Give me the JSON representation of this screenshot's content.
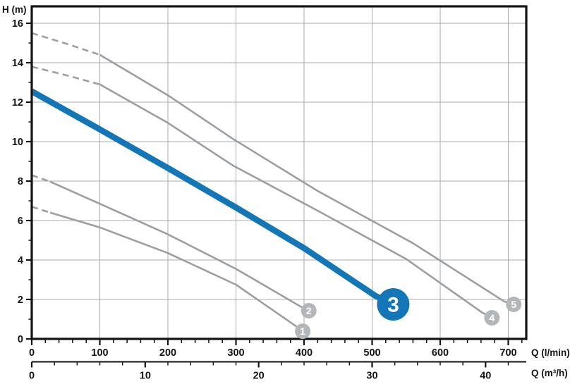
{
  "chart_data": {
    "type": "line",
    "ylabel": "H (m)",
    "xlabel_primary": "Q (l/min)",
    "xlabel_secondary": "Q (m³/h)",
    "y_axis": {
      "range": [
        0,
        16.8
      ],
      "ticks": [
        0,
        2,
        4,
        6,
        8,
        10,
        12,
        14,
        16
      ],
      "minor_step": 1
    },
    "x_axis_lmin": {
      "range": [
        0,
        726
      ],
      "ticks": [
        0,
        100,
        200,
        300,
        400,
        500,
        600,
        700
      ],
      "minor_step": 20
    },
    "x_axis_m3h": {
      "range": [
        0,
        43.6
      ],
      "ticks": [
        0,
        10,
        20,
        30,
        40
      ],
      "minor_step": 2,
      "lmin_per_unit": 16.667
    },
    "grid": {
      "x_step_lmin": 100,
      "y_step_m": 2
    },
    "series": [
      {
        "id": "1",
        "highlight": false,
        "dashed_points": [
          [
            0,
            6.7
          ],
          [
            27,
            6.4
          ]
        ],
        "solid_points": [
          [
            27,
            6.4
          ],
          [
            100,
            5.65
          ],
          [
            200,
            4.35
          ],
          [
            300,
            2.75
          ],
          [
            388,
            0.65
          ]
        ],
        "badge": {
          "label": "1",
          "q": 398,
          "h": 0.39
        }
      },
      {
        "id": "2",
        "highlight": false,
        "dashed_points": [
          [
            0,
            8.3
          ],
          [
            27,
            7.97
          ]
        ],
        "solid_points": [
          [
            27,
            7.97
          ],
          [
            100,
            6.85
          ],
          [
            200,
            5.3
          ],
          [
            300,
            3.55
          ],
          [
            396,
            1.62
          ]
        ],
        "badge": {
          "label": "2",
          "q": 407,
          "h": 1.43
        }
      },
      {
        "id": "3",
        "highlight": true,
        "dashed_points": [],
        "solid_points": [
          [
            0,
            12.55
          ],
          [
            100,
            10.62
          ],
          [
            200,
            8.66
          ],
          [
            300,
            6.66
          ],
          [
            400,
            4.6
          ],
          [
            505,
            2.18
          ]
        ],
        "badge": {
          "label": "3",
          "q": 531,
          "h": 1.75
        }
      },
      {
        "id": "4",
        "highlight": false,
        "dashed_points": [
          [
            0,
            13.8
          ],
          [
            50,
            13.37
          ],
          [
            100,
            12.9
          ]
        ],
        "solid_points": [
          [
            100,
            12.9
          ],
          [
            200,
            10.95
          ],
          [
            295,
            8.8
          ],
          [
            420,
            6.5
          ],
          [
            550,
            4.05
          ],
          [
            661,
            1.35
          ]
        ],
        "badge": {
          "label": "4",
          "q": 676,
          "h": 1.07
        }
      },
      {
        "id": "5",
        "highlight": false,
        "dashed_points": [
          [
            0,
            15.5
          ],
          [
            50,
            14.97
          ],
          [
            100,
            14.4
          ]
        ],
        "solid_points": [
          [
            100,
            14.4
          ],
          [
            200,
            12.35
          ],
          [
            295,
            10.15
          ],
          [
            420,
            7.5
          ],
          [
            560,
            4.85
          ],
          [
            694,
            1.9
          ]
        ],
        "badge": {
          "label": "5",
          "q": 708,
          "h": 1.75
        }
      }
    ],
    "style": {
      "accent_blue": "#1377b7",
      "curve_gray": "#9b9fa3",
      "badge_gray": "#b4b7ba",
      "grid_gray": "#a9acae",
      "axis_black": "#141414",
      "badge_text": "#ffffff"
    }
  }
}
